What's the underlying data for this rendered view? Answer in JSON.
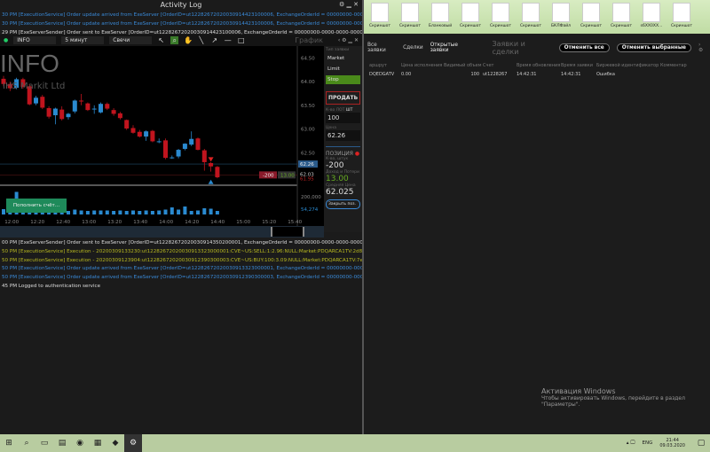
{
  "activity_log": {
    "title": "Activity Log",
    "top_lines": [
      {
        "text": "30 PM  [ExecutionService] Order update arrived from ExeServer [OrderID=ut12282672020030914423100006, ExchangeOrderId = 00000000-0000-0000-0000-",
        "tone": "blue"
      },
      {
        "text": "30 PM  [ExecutionService] Order update arrived from ExeServer [OrderID=ut12282672020030914423100006, ExchangeOrderId = 00000000-0000-0000-0000-",
        "tone": "blue"
      },
      {
        "text": "29 PM  [ExeServerSender] Order sent to ExeServer [OrderID=ut12282672020030914423100006, ExchangeOrderId = 00000000-0000-0000-0000-000000000000",
        "tone": "white"
      }
    ],
    "bottom_lines": [
      {
        "text": "00 PM  [ExeServerSender] Order sent to ExeServer [OrderID=ut12282672020030914350200001, ExchangeOrderId = 00000000-0000-0000-0000-00000000000",
        "tone": "white"
      },
      {
        "text": "50 PM  [ExecutionService] Execution - 20200309133230:ut12282672020030913323000001:CVE~US:SELL:1:2.96:NULL:Market:PDQARCA1TV:2d8f62d6-0f93-41",
        "tone": "yellow"
      },
      {
        "text": "50 PM  [ExecutionService] Execution - 20200309123904:ut12282672020030912390300003:CVE~US:BUY:100:3.09:NULL:Market:PDQARCA1TV:7e0de5de-d9bb",
        "tone": "yellow"
      },
      {
        "text": "50 PM  [ExecutionService] Order update arrived from ExeServer [OrderID=ut12282672020030913323000001, ExchangeOrderId = 00000000-0000-0000-0000-",
        "tone": "blue"
      },
      {
        "text": "50 PM  [ExecutionService] Order update arrived from ExeServer [OrderID=ut12282672020030912390300003, ExchangeOrderId = 00000000-0000-0000-0000-",
        "tone": "blue"
      },
      {
        "text": "45 PM  Logged to authentication service",
        "tone": "white"
      }
    ]
  },
  "chart_toolbar": {
    "symbol": "INFO",
    "interval": "5 минут",
    "chart_type": "Свечи",
    "panel_title": "График"
  },
  "chart_data": {
    "type": "candlestick",
    "symbol": "INFO",
    "company": "IHS Markit Ltd",
    "yticks": [
      "64.50",
      "64.00",
      "63.50",
      "63.00",
      "62.50"
    ],
    "ylim": [
      61.85,
      64.75
    ],
    "xticks": [
      "12:00",
      "12:20",
      "12:40",
      "13:00",
      "13:20",
      "13:40",
      "14:00",
      "14:20",
      "14:40",
      "15:00",
      "15:20",
      "15:40"
    ],
    "candles": [
      [
        64.06,
        64.12,
        63.9,
        63.95
      ],
      [
        63.95,
        64.0,
        63.8,
        63.86
      ],
      [
        63.87,
        64.08,
        63.84,
        64.05
      ],
      [
        64.05,
        64.08,
        63.85,
        63.89
      ],
      [
        63.9,
        63.95,
        63.5,
        63.52
      ],
      [
        63.54,
        63.7,
        63.5,
        63.66
      ],
      [
        63.68,
        63.72,
        63.42,
        63.45
      ],
      [
        63.44,
        63.48,
        63.22,
        63.26
      ],
      [
        63.29,
        63.45,
        63.1,
        63.43
      ],
      [
        63.41,
        63.48,
        63.18,
        63.21
      ],
      [
        63.25,
        63.34,
        63.2,
        63.32
      ],
      [
        63.37,
        63.62,
        63.33,
        63.6
      ],
      [
        63.6,
        63.74,
        63.5,
        63.58
      ],
      [
        63.54,
        63.56,
        63.38,
        63.4
      ],
      [
        63.42,
        63.5,
        63.32,
        63.43
      ],
      [
        63.35,
        63.56,
        63.33,
        63.53
      ],
      [
        63.53,
        63.56,
        63.4,
        63.43
      ],
      [
        63.4,
        63.44,
        63.28,
        63.32
      ],
      [
        63.33,
        63.36,
        63.2,
        63.23
      ],
      [
        63.19,
        63.2,
        62.98,
        63.01
      ],
      [
        63.02,
        63.08,
        62.9,
        62.92
      ],
      [
        62.94,
        62.98,
        62.82,
        62.84
      ],
      [
        62.84,
        62.97,
        62.75,
        62.95
      ],
      [
        62.96,
        62.98,
        62.72,
        62.74
      ],
      [
        62.74,
        62.8,
        62.7,
        62.74
      ],
      [
        62.76,
        62.8,
        62.36,
        62.39
      ],
      [
        62.4,
        62.44,
        62.37,
        62.4
      ],
      [
        62.42,
        62.58,
        62.38,
        62.56
      ],
      [
        62.58,
        62.7,
        62.55,
        62.69
      ],
      [
        62.67,
        62.95,
        62.64,
        62.79
      ],
      [
        62.8,
        62.82,
        62.55,
        62.56
      ],
      [
        62.55,
        62.58,
        62.12,
        62.3
      ],
      [
        62.28,
        62.3,
        62.1,
        62.21
      ],
      [
        62.2,
        62.22,
        61.96,
        61.98
      ]
    ],
    "volumes": [
      60000,
      40000,
      255000,
      50000,
      40000,
      45000,
      40000,
      45000,
      40000,
      45000,
      40000,
      55000,
      45000,
      40000,
      45000,
      45000,
      45000,
      40000,
      45000,
      40000,
      45000,
      40000,
      45000,
      40000,
      45000,
      55000,
      80000,
      55000,
      90000,
      40000,
      45000,
      70000,
      65000,
      40000
    ],
    "vol_ticks": [
      "200,000"
    ],
    "last_volume": "54,274",
    "bid_line": "62.26",
    "last_price": "62.03",
    "last_low": "61.95",
    "position_qty": "-200",
    "position_pnl": "13.00",
    "button": "Пополнить счёт..."
  },
  "order_panel": {
    "type_label": "Тип заявки",
    "types": [
      "Market",
      "Limit",
      "Stop"
    ],
    "active_type": "Stop",
    "sell": "ПРОДАТЬ",
    "qty_label": "К-во",
    "qty_units": [
      "ЛОТ",
      "ШТ"
    ],
    "qty": "100",
    "price_label": "Цена",
    "price": "62.26",
    "position_title": "ПОЗИЦИЯ",
    "qty_pos_label": "К-во, штук",
    "qty_pos": "-200",
    "pnl_label": "Доход и Потери",
    "pnl": "13.00",
    "avg_label": "Средняя Цена",
    "avg": "62.025",
    "close": "Закрыть поз."
  },
  "desktop_icons": [
    "Скриншот",
    "Скриншот",
    "Бланковый",
    "Скриншот",
    "Скриншот",
    "Скриншот",
    "БКЛФайл",
    "Скриншот",
    "Скриншот",
    "s6XX0XX...",
    "Скриншот"
  ],
  "orders": {
    "tabs": [
      "Все заявки",
      "Сделки",
      "Открытые заявки"
    ],
    "title": "Заявки и сделки",
    "cancel_all": "Отменить все",
    "cancel_selected": "Отменить выбранные",
    "columns": [
      "аршрут",
      "Цена исполнения",
      "Видимый объем",
      "Счет",
      "Время обновления",
      "Время заявки",
      "Биржевой идентификатор",
      "Комментар"
    ],
    "rows": [
      [
        "DQEDGATV",
        "0.00",
        "100",
        "ut1228267",
        "14:42:31",
        "14:42:31",
        "Ошибка",
        ""
      ]
    ]
  },
  "activation": {
    "title": "Активация Windows",
    "text": "Чтобы активировать Windows, перейдите в раздел",
    "text2": "\"Параметры\"."
  },
  "taskbar": {
    "lang": "ENG",
    "time": "21:44",
    "date": "09.03.2020"
  }
}
